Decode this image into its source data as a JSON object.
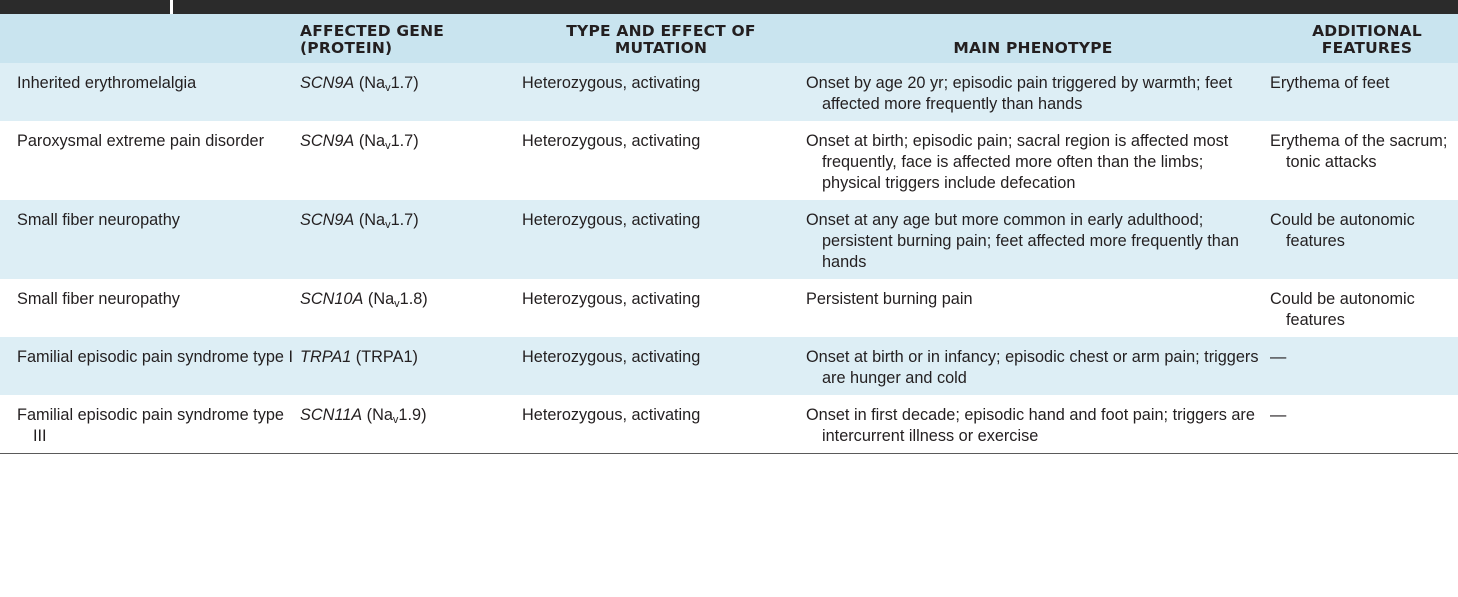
{
  "table": {
    "headers": {
      "condition": "",
      "gene": [
        "AFFECTED GENE",
        "(PROTEIN)"
      ],
      "mutation": [
        "TYPE AND EFFECT OF",
        "MUTATION"
      ],
      "phenotype": [
        "MAIN PHENOTYPE"
      ],
      "additional": [
        "ADDITIONAL",
        "FEATURES"
      ]
    },
    "rows": [
      {
        "condition": "Inherited erythromelalgia",
        "gene_symbol": "SCN9A",
        "protein_prefix": "Na",
        "protein_sub": "v",
        "protein_suffix": "1.7",
        "mutation": "Heterozygous, activating",
        "phenotype": "Onset by age 20 yr; episodic pain triggered by warmth; feet affected more frequently than hands",
        "additional": "Erythema of feet"
      },
      {
        "condition": "Paroxysmal extreme pain disorder",
        "gene_symbol": "SCN9A",
        "protein_prefix": "Na",
        "protein_sub": "v",
        "protein_suffix": "1.7",
        "mutation": "Heterozygous, activating",
        "phenotype": "Onset at birth; episodic pain; sacral region is affected most frequently, face is affected more often than the limbs; physical triggers include defecation",
        "additional": "Erythema of the sacrum; tonic attacks"
      },
      {
        "condition": "Small fiber neuropathy",
        "gene_symbol": "SCN9A",
        "protein_prefix": "Na",
        "protein_sub": "v",
        "protein_suffix": "1.7",
        "mutation": "Heterozygous, activating",
        "phenotype": "Onset at any age but more common in early adulthood; persistent burning pain; feet affected more frequently than hands",
        "additional": "Could be autonomic features"
      },
      {
        "condition": "Small fiber neuropathy",
        "gene_symbol": "SCN10A",
        "protein_prefix": "Na",
        "protein_sub": "v",
        "protein_suffix": "1.8",
        "mutation": "Heterozygous, activating",
        "phenotype": "Persistent burning pain",
        "additional": "Could be autonomic features"
      },
      {
        "condition": "Familial episodic pain syndrome type I",
        "gene_symbol": "TRPA1",
        "protein_prefix": "TRPA1",
        "protein_sub": "",
        "protein_suffix": "",
        "mutation": "Heterozygous, activating",
        "phenotype": "Onset at birth or in infancy; episodic chest or arm pain; triggers are hunger and cold",
        "additional": "—"
      },
      {
        "condition": "Familial episodic pain syndrome type III",
        "gene_symbol": "SCN11A",
        "protein_prefix": "Na",
        "protein_sub": "v",
        "protein_suffix": "1.9",
        "mutation": "Heterozygous, activating",
        "phenotype": "Onset in first decade; episodic hand and foot pain; triggers are intercurrent illness or exercise",
        "additional": "—"
      }
    ]
  },
  "colors": {
    "header_bg": "#c9e4ef",
    "row_alt_bg": "#ddeef5",
    "top_bar": "#2b2b2b",
    "text": "#231f20"
  }
}
